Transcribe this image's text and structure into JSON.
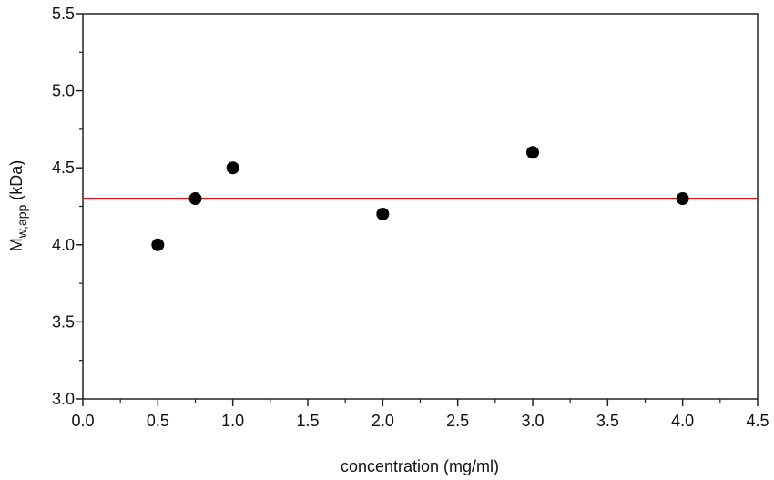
{
  "chart_data": {
    "type": "scatter",
    "title": "",
    "xlabel": "concentration (mg/ml)",
    "ylabel": {
      "main": "M",
      "subscript": "w,app",
      "suffix": " (kDa)"
    },
    "xlim": [
      0.0,
      4.5
    ],
    "ylim": [
      3.0,
      5.5
    ],
    "x_ticks": [
      0.0,
      0.5,
      1.0,
      1.5,
      2.0,
      2.5,
      3.0,
      3.5,
      4.0,
      4.5
    ],
    "x_tick_labels": [
      "0.0",
      "0.5",
      "1.0",
      "1.5",
      "2.0",
      "2.5",
      "3.0",
      "3.5",
      "4.0",
      "4.5"
    ],
    "y_ticks": [
      3.0,
      3.5,
      4.0,
      4.5,
      5.0,
      5.5
    ],
    "y_tick_labels": [
      "3.0",
      "3.5",
      "4.0",
      "4.5",
      "5.0",
      "5.5"
    ],
    "grid": false,
    "legend": "none",
    "series": [
      {
        "type": "scatter",
        "color": "#000000",
        "points": [
          {
            "x": 0.5,
            "y": 4.0
          },
          {
            "x": 0.75,
            "y": 4.3
          },
          {
            "x": 1.0,
            "y": 4.5
          },
          {
            "x": 2.0,
            "y": 4.2
          },
          {
            "x": 3.0,
            "y": 4.6
          },
          {
            "x": 4.0,
            "y": 4.3
          }
        ]
      }
    ],
    "reference_lines": [
      {
        "orientation": "horizontal",
        "y": 4.3,
        "color": "#e01010"
      }
    ],
    "axis_color": "#222222",
    "minor_ticks": true
  }
}
